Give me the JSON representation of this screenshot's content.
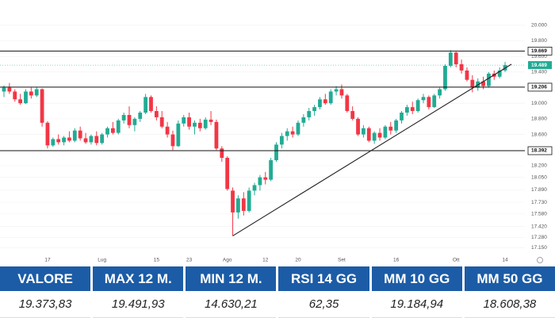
{
  "chart_data": {
    "type": "candlestick",
    "categories": [
      null,
      null,
      null,
      null,
      null,
      null,
      null,
      null,
      "17",
      null,
      null,
      null,
      null,
      null,
      null,
      null,
      null,
      null,
      "Lug",
      null,
      null,
      null,
      null,
      null,
      null,
      null,
      null,
      null,
      "15",
      null,
      null,
      null,
      null,
      null,
      "23",
      null,
      null,
      null,
      null,
      null,
      null,
      "Ago",
      null,
      null,
      null,
      null,
      null,
      null,
      "12",
      null,
      null,
      null,
      null,
      null,
      "20",
      null,
      null,
      null,
      null,
      null,
      null,
      null,
      "Set",
      null,
      null,
      null,
      null,
      null,
      null,
      null,
      null,
      null,
      "16",
      null,
      null,
      null,
      null,
      null,
      null,
      null,
      null,
      null,
      null,
      "Ott",
      null,
      null,
      null,
      null,
      null,
      null,
      null,
      null,
      "14"
    ],
    "open": [
      19150,
      19200,
      19150,
      19050,
      19000,
      19150,
      19100,
      19180,
      18750,
      18460,
      18540,
      18500,
      18560,
      18520,
      18650,
      18550,
      18500,
      18580,
      18490,
      18600,
      18680,
      18620,
      18780,
      18850,
      18720,
      18800,
      18880,
      19080,
      18900,
      18820,
      18700,
      18600,
      18450,
      18740,
      18820,
      18700,
      18750,
      18680,
      18790,
      18760,
      18420,
      18300,
      17880,
      17600,
      17780,
      17620,
      17880,
      17950,
      18050,
      18020,
      18270,
      18470,
      18580,
      18640,
      18600,
      18750,
      18820,
      18900,
      18950,
      19050,
      19000,
      19150,
      19180,
      19100,
      18900,
      18800,
      18600,
      18680,
      18520,
      18620,
      18560,
      18700,
      18650,
      18780,
      18880,
      18950,
      18900,
      19040,
      19080,
      18950,
      19100,
      19180,
      19480,
      19650,
      19500,
      19420,
      19300,
      19200,
      19280,
      19220,
      19380,
      19340,
      19420
    ],
    "high": [
      19230,
      19260,
      19180,
      19120,
      19180,
      19200,
      19210,
      19190,
      18770,
      18560,
      18600,
      18580,
      18640,
      18680,
      18700,
      18620,
      18600,
      18640,
      18620,
      18700,
      18760,
      18800,
      18880,
      18960,
      18820,
      18900,
      19120,
      19100,
      18960,
      18900,
      18760,
      18650,
      18780,
      18850,
      18880,
      18780,
      18800,
      18820,
      18900,
      18790,
      18450,
      18320,
      17920,
      17820,
      17860,
      17920,
      17980,
      18080,
      18120,
      18300,
      18500,
      18620,
      18680,
      18700,
      18780,
      18860,
      18940,
      18980,
      19080,
      19120,
      19180,
      19220,
      19240,
      19120,
      18960,
      18820,
      18720,
      18700,
      18640,
      18680,
      18720,
      18760,
      18800,
      18900,
      18980,
      19020,
      19060,
      19120,
      19100,
      19120,
      19200,
      19500,
      19680,
      19660,
      19560,
      19460,
      19360,
      19320,
      19340,
      19400,
      19420,
      19460,
      19530
    ],
    "low": [
      19080,
      19120,
      19020,
      18980,
      18990,
      19060,
      19080,
      18700,
      18420,
      18440,
      18470,
      18460,
      18500,
      18500,
      18520,
      18480,
      18470,
      18460,
      18470,
      18560,
      18600,
      18600,
      18740,
      18680,
      18640,
      18760,
      18860,
      18880,
      18780,
      18680,
      18560,
      18400,
      18440,
      18700,
      18660,
      18600,
      18640,
      18660,
      18720,
      18400,
      18250,
      17880,
      17300,
      17520,
      17560,
      17600,
      17820,
      17880,
      17960,
      18000,
      18250,
      18420,
      18520,
      18560,
      18580,
      18700,
      18780,
      18840,
      18920,
      18980,
      18980,
      19100,
      19060,
      18880,
      18780,
      18580,
      18560,
      18500,
      18480,
      18520,
      18540,
      18600,
      18620,
      18740,
      18840,
      18860,
      18880,
      19000,
      18920,
      18940,
      19060,
      19160,
      19460,
      19460,
      19380,
      19280,
      19140,
      19160,
      19180,
      19200,
      19300,
      19320,
      19400
    ],
    "close": [
      19200,
      19150,
      19050,
      19000,
      19150,
      19100,
      19180,
      18750,
      18460,
      18540,
      18500,
      18560,
      18520,
      18650,
      18550,
      18500,
      18580,
      18490,
      18600,
      18680,
      18620,
      18780,
      18850,
      18720,
      18800,
      18880,
      19080,
      18900,
      18820,
      18700,
      18600,
      18450,
      18740,
      18820,
      18700,
      18750,
      18680,
      18790,
      18760,
      18420,
      18300,
      17900,
      17600,
      17780,
      17620,
      17880,
      17950,
      18050,
      18020,
      18270,
      18470,
      18580,
      18640,
      18600,
      18750,
      18820,
      18900,
      18950,
      19050,
      19000,
      19150,
      19180,
      19100,
      18900,
      18800,
      18600,
      18680,
      18520,
      18620,
      18560,
      18700,
      18650,
      18780,
      18880,
      18950,
      18900,
      19040,
      19080,
      18950,
      19100,
      19180,
      19480,
      19650,
      19500,
      19420,
      19300,
      19200,
      19280,
      19220,
      19380,
      19340,
      19420,
      19489
    ],
    "up_color": "#22ab94",
    "down_color": "#f23645",
    "ylim": [
      17050,
      20100
    ],
    "yticks": [
      {
        "value": 20000,
        "label": "20.000"
      },
      {
        "value": 19800,
        "label": "19.800"
      },
      {
        "value": 19600,
        "label": "19.600"
      },
      {
        "value": 19400,
        "label": "19.400"
      },
      {
        "value": 19000,
        "label": "19.000"
      },
      {
        "value": 18800,
        "label": "18.800"
      },
      {
        "value": 18600,
        "label": "18.600"
      },
      {
        "value": 18200,
        "label": "18.200"
      },
      {
        "value": 18050,
        "label": "18.050"
      },
      {
        "value": 17890,
        "label": "17.890"
      },
      {
        "value": 17730,
        "label": "17.730"
      },
      {
        "value": 17580,
        "label": "17.580"
      },
      {
        "value": 17420,
        "label": "17.420"
      },
      {
        "value": 17280,
        "label": "17.280"
      },
      {
        "value": 17150,
        "label": "17.150"
      }
    ],
    "levels": [
      {
        "value": 19669,
        "label": "19.669"
      },
      {
        "value": 19206,
        "label": "19.206"
      },
      {
        "value": 18392,
        "label": "18.392"
      }
    ],
    "current_price": {
      "value": 19489,
      "label": "19.489"
    },
    "trendline": {
      "start": 17300,
      "end": 19500
    },
    "grid": true
  },
  "table": {
    "headers": [
      "VALORE",
      "MAX 12 M.",
      "MIN 12 M.",
      "RSI 14 GG",
      "MM 10 GG",
      "MM 50 GG"
    ],
    "values": [
      "19.373,83",
      "19.491,93",
      "14.630,21",
      "62,35",
      "19.184,94",
      "18.608,38"
    ]
  }
}
